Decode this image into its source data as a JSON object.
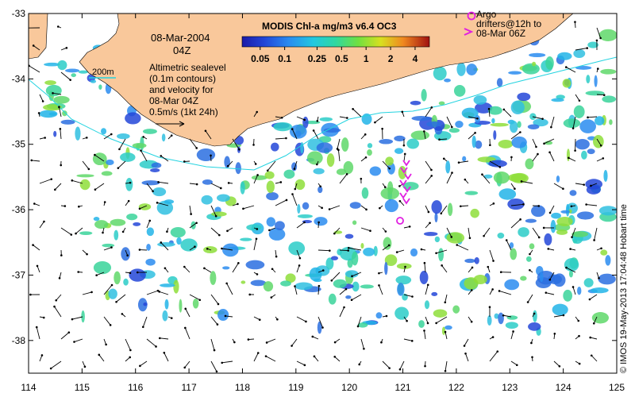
{
  "map": {
    "axes": {
      "lon_ticks": [
        "114",
        "115",
        "116",
        "117",
        "118",
        "119",
        "120",
        "121",
        "122",
        "123",
        "124",
        "125"
      ],
      "lat_ticks": [
        "-33",
        "-34",
        "-35",
        "-36",
        "-37",
        "-38"
      ]
    },
    "region": {
      "lon_range": [
        114,
        125
      ],
      "lat_range": [
        -38.5,
        -33
      ]
    },
    "colors": {
      "land": "#F9C89B",
      "isobath": "#22D3E0",
      "argo": "#E020E0"
    }
  },
  "colorbar": {
    "title": "MODIS Chl-a mg/m3 v6.4 OC3",
    "ticks": [
      "0.05",
      "0.1",
      "0.25",
      "0.5",
      "1",
      "2",
      "4"
    ]
  },
  "info": {
    "date": "08-Mar-2004",
    "time": "04Z",
    "isobath_label": "200m",
    "description": "Altimetric sealevel\n(0.1m contours)\nand velocity for\n08-Mar 04Z",
    "scale_label": "0.5m/s (1kt 24h)"
  },
  "argo_legend": {
    "text": "Argo\ndrifters@12h to\n08-Mar 06Z"
  },
  "credit": "© IMOS 19-May-2013 17:04:48 Hobart time"
}
